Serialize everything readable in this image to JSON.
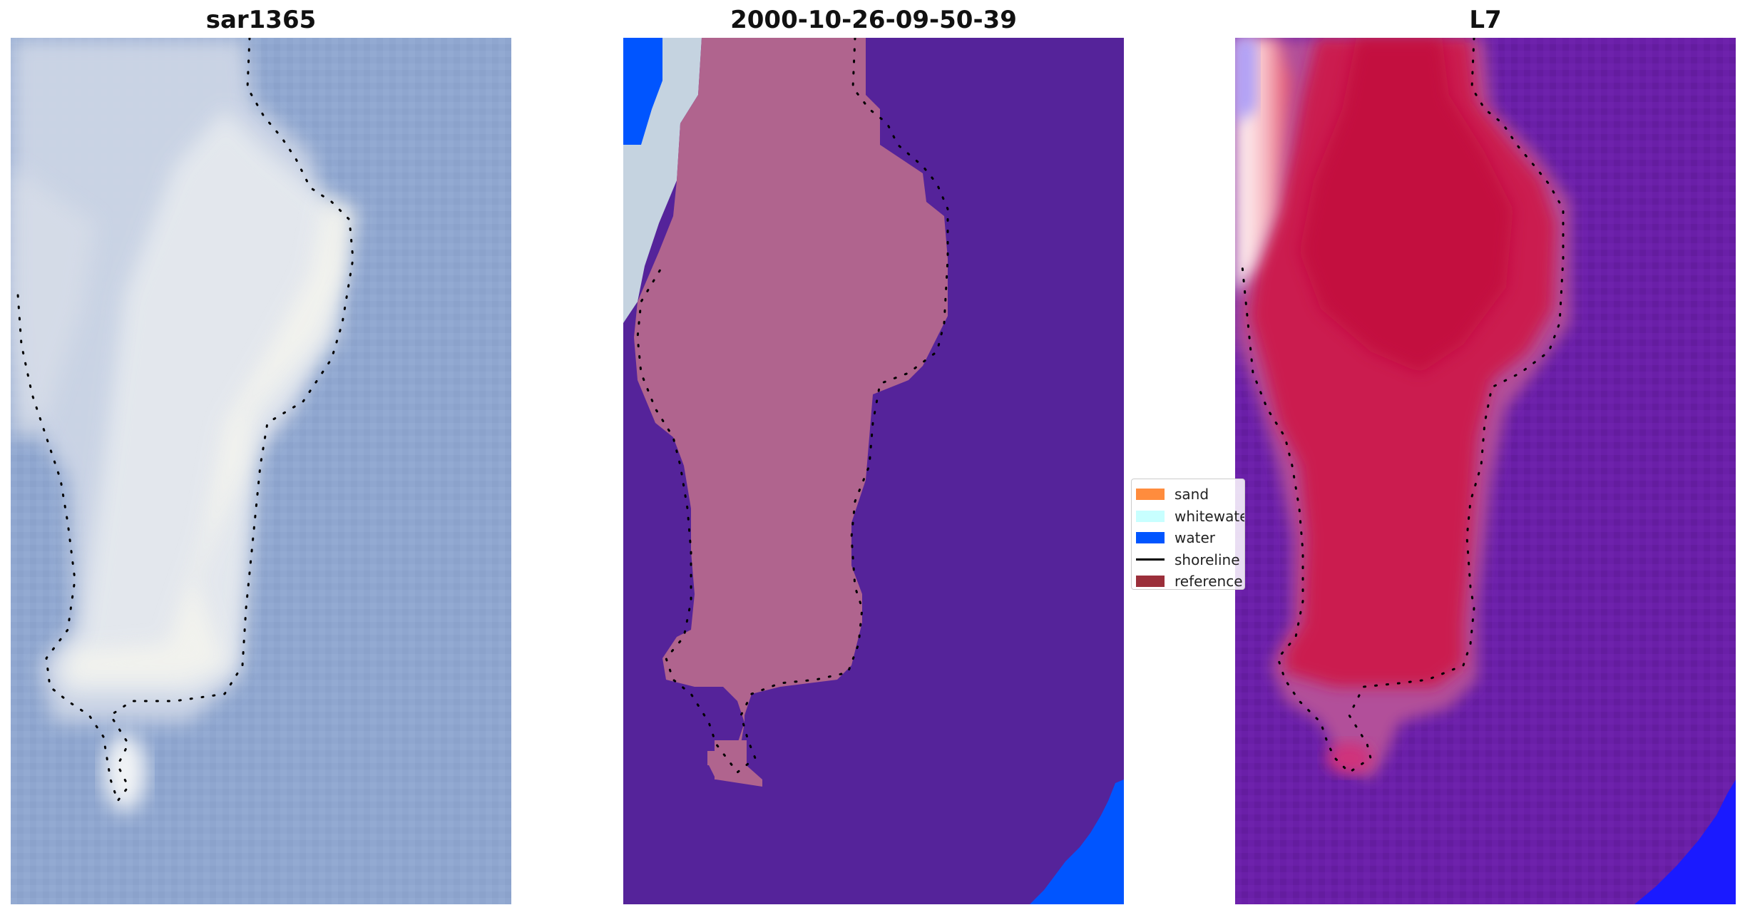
{
  "panels": [
    {
      "title": "sar1365",
      "image": "rgb-composite"
    },
    {
      "title": "2000-10-26-09-50-39",
      "image": "classified"
    },
    {
      "title": "L7",
      "image": "index-map"
    }
  ],
  "legend": {
    "items": [
      {
        "label": "sand",
        "color": "#ff8c3d",
        "kind": "patch"
      },
      {
        "label": "whitewater",
        "color": "#c8ffff",
        "kind": "patch"
      },
      {
        "label": "water",
        "color": "#0055ff",
        "kind": "patch"
      },
      {
        "label": "shoreline",
        "color": "#000000",
        "kind": "line"
      },
      {
        "label": "reference",
        "color": "#9b2f3a",
        "kind": "patch"
      }
    ]
  },
  "colors": {
    "rgb_sea": "#8ea5ce",
    "rgb_island": "#dde4ea",
    "class_water_bg": "#55239a",
    "class_island": "#b0648e",
    "class_water": "#0055ff",
    "class_whitewater": "#c8d6e2",
    "index_bg": "#6a1fa6",
    "index_island": "#c8144a",
    "index_blue": "#1a1aff"
  }
}
